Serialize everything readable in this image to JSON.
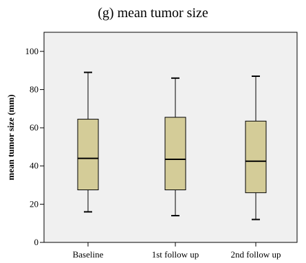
{
  "chart_data": {
    "type": "box",
    "title": "(g) mean tumor size",
    "xlabel": "",
    "ylabel": "mean tumor size (mm)",
    "ylim": [
      0,
      110
    ],
    "yticks": [
      0,
      20,
      40,
      60,
      80,
      100
    ],
    "categories": [
      "Baseline",
      "1st follow up",
      "2nd follow up"
    ],
    "boxes": [
      {
        "category": "Baseline",
        "min": 16,
        "q1": 27.5,
        "median": 44,
        "q3": 64.5,
        "max": 89
      },
      {
        "category": "1st follow up",
        "min": 14,
        "q1": 27.5,
        "median": 43.5,
        "q3": 65.5,
        "max": 86
      },
      {
        "category": "2nd follow up",
        "min": 12,
        "q1": 26,
        "median": 42.5,
        "q3": 63.5,
        "max": 87
      }
    ],
    "colors": {
      "box_fill": "#D4CC98",
      "plot_background": "#F0F0F0",
      "lines": "#000000"
    },
    "grid": false,
    "legend": "none"
  }
}
